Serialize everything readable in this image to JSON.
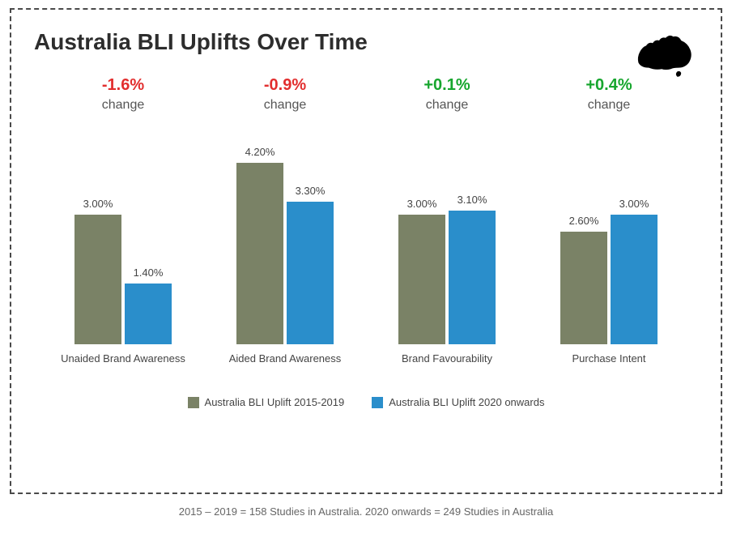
{
  "title": "Australia BLI Uplifts Over Time",
  "icon_name": "australia-map-icon",
  "colors": {
    "series_a": "#7a8266",
    "series_b": "#2a8ecb",
    "negative": "#e22e2e",
    "positive": "#17a62e",
    "text": "#444444",
    "title": "#2d2d2d",
    "border": "#4a4a4a",
    "background": "#ffffff"
  },
  "chart": {
    "type": "bar",
    "y_max_percent": 4.5,
    "categories": [
      {
        "name": "Unaided Brand Awareness",
        "change": "-1.6%",
        "change_sign": "neg",
        "a": 3.0,
        "a_label": "3.00%",
        "b": 1.4,
        "b_label": "1.40%"
      },
      {
        "name": "Aided Brand Awareness",
        "change": "-0.9%",
        "change_sign": "neg",
        "a": 4.2,
        "a_label": "4.20%",
        "b": 3.3,
        "b_label": "3.30%"
      },
      {
        "name": "Brand Favourability",
        "change": "+0.1%",
        "change_sign": "pos",
        "a": 3.0,
        "a_label": "3.00%",
        "b": 3.1,
        "b_label": "3.10%"
      },
      {
        "name": "Purchase Intent",
        "change": "+0.4%",
        "change_sign": "pos",
        "a": 2.6,
        "a_label": "2.60%",
        "b": 3.0,
        "b_label": "3.00%"
      }
    ],
    "series": [
      {
        "key": "a",
        "label": "Australia BLI Uplift 2015-2019"
      },
      {
        "key": "b",
        "label": "Australia BLI Uplift 2020 onwards"
      }
    ]
  },
  "change_word": "change",
  "footnote": "2015 – 2019 = 158 Studies in Australia. 2020 onwards = 249 Studies in Australia"
}
